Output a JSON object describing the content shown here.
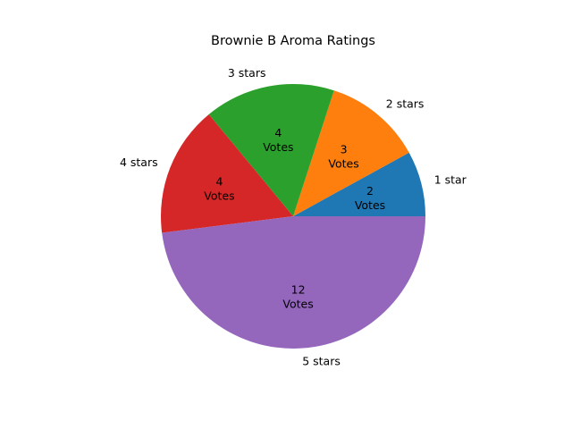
{
  "chart_data": {
    "type": "pie",
    "title": "Brownie B Aroma Ratings",
    "categories": [
      "1 star",
      "2 stars",
      "3 stars",
      "4 stars",
      "5 stars"
    ],
    "values": [
      2,
      3,
      4,
      4,
      12
    ],
    "value_unit": "Votes",
    "colors": [
      "#1f77b4",
      "#ff7f0e",
      "#2ca02c",
      "#d62728",
      "#9467bd"
    ],
    "start_angle_deg": 0,
    "direction": "counterclockwise"
  }
}
